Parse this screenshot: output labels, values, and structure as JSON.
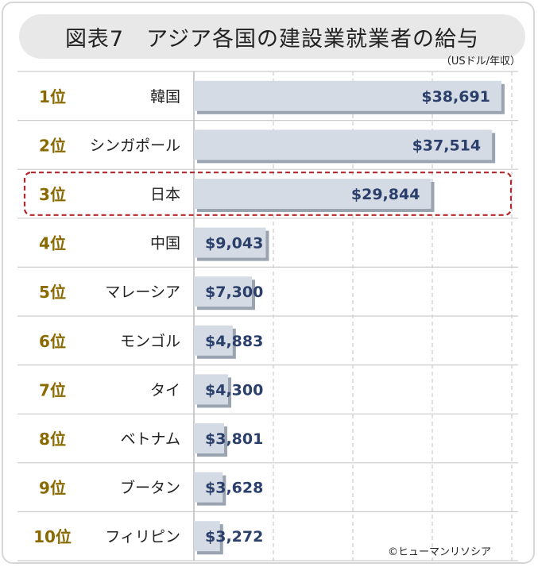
{
  "title": "図表7　アジア各国の建設業就業者の給与",
  "unit_note": "（USドル/年収）",
  "credit": "©ヒューマンリソシア",
  "colors": {
    "bar": "#d5dbe5",
    "bar_shadow": "#9aa3b0",
    "value_text": "#2b3f6b",
    "rank_text": "#8a6a00",
    "highlight": "#b3282d",
    "grid": "#cccccc"
  },
  "chart_data": {
    "type": "bar",
    "orientation": "horizontal",
    "title": "図表7　アジア各国の建設業就業者の給与",
    "unit": "（USドル/年収）",
    "ranks": [
      "1位",
      "2位",
      "3位",
      "4位",
      "5位",
      "6位",
      "7位",
      "8位",
      "9位",
      "10位"
    ],
    "categories": [
      "韓国",
      "シンガポール",
      "日本",
      "中国",
      "マレーシア",
      "モンゴル",
      "タイ",
      "ベトナム",
      "ブータン",
      "フィリピン"
    ],
    "values": [
      38691,
      37514,
      29844,
      9043,
      7300,
      4883,
      4300,
      3801,
      3628,
      3272
    ],
    "value_labels": [
      "$38,691",
      "$37,514",
      "$29,844",
      "$9,043",
      "$7,300",
      "$4,883",
      "$4,300",
      "$3,801",
      "$3,628",
      "$3,272"
    ],
    "xlim": [
      0,
      40000
    ],
    "highlighted_category": "日本",
    "grid": true
  }
}
